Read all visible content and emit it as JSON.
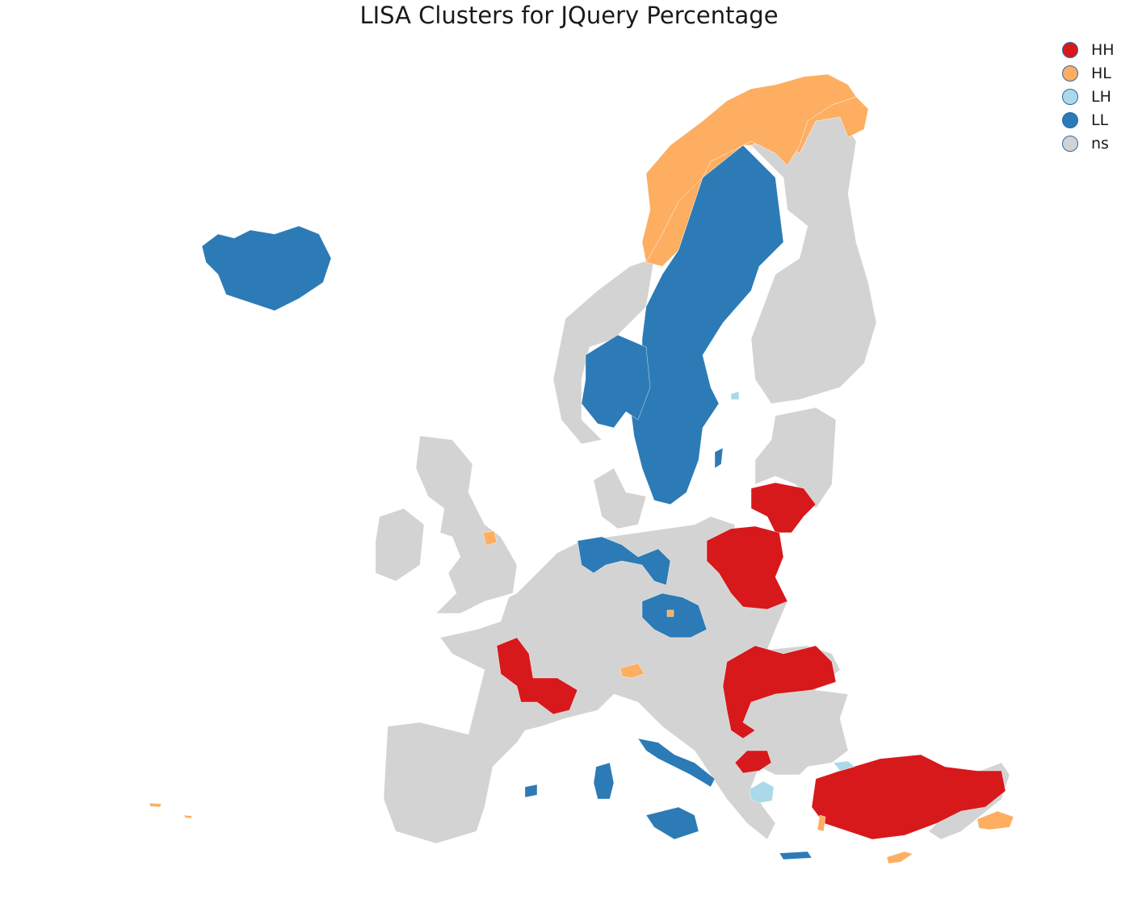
{
  "title": "LISA Clusters for JQuery Percentage",
  "colors": {
    "HH": "#d7191c",
    "HL": "#fdae61",
    "LH": "#abd9e9",
    "LL": "#2c7bb6",
    "ns": "#d3d3d3"
  },
  "legend": [
    {
      "key": "HH",
      "label": "HH",
      "color": "#d7191c"
    },
    {
      "key": "HL",
      "label": "HL",
      "color": "#fdae61"
    },
    {
      "key": "LH",
      "label": "LH",
      "color": "#abd9e9"
    },
    {
      "key": "LL",
      "label": "LL",
      "color": "#2c7bb6"
    },
    {
      "key": "ns",
      "label": "ns",
      "color": "#d3d3d3"
    }
  ]
}
